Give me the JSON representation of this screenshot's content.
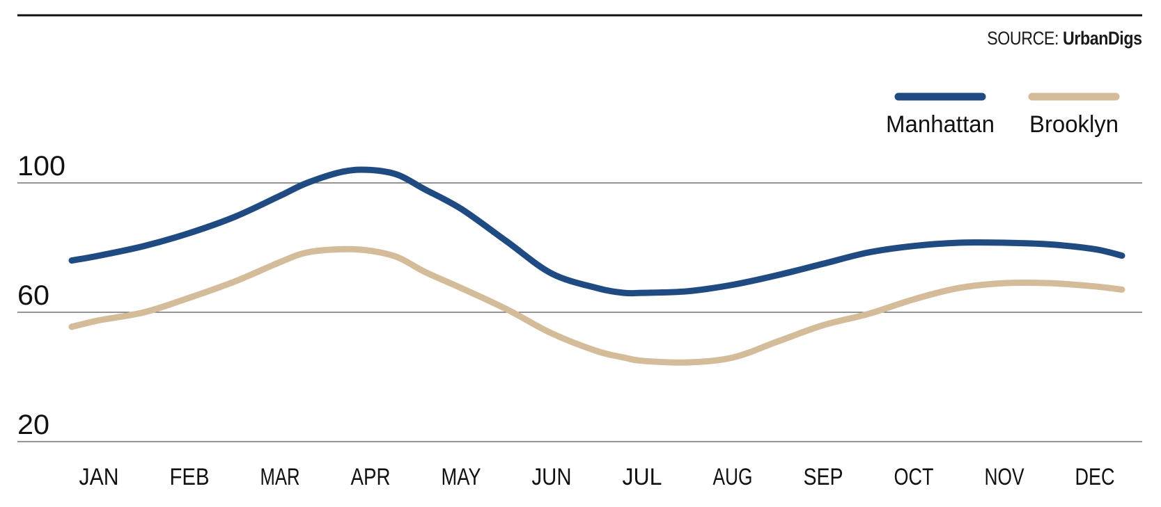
{
  "source": {
    "prefix": "SOURCE:",
    "name": "UrbanDigs"
  },
  "chart_data": {
    "type": "line",
    "title": "",
    "xlabel": "",
    "ylabel": "",
    "ylim": [
      20,
      100
    ],
    "yticks": [
      "100",
      "60",
      "20"
    ],
    "categories": [
      "JAN",
      "FEB",
      "MAR",
      "APR",
      "MAY",
      "JUN",
      "JUL",
      "AUG",
      "SEP",
      "OCT",
      "NOV",
      "DEC"
    ],
    "legend_position": "top-right",
    "grid": true,
    "series": [
      {
        "name": "Manhattan",
        "color": "#1f4a82",
        "x": [
          0.7,
          1.0,
          1.5,
          2.0,
          2.5,
          3.0,
          3.3,
          3.7,
          4.0,
          4.3,
          4.6,
          5.0,
          5.5,
          6.0,
          6.5,
          6.8,
          7.0,
          7.5,
          8.0,
          8.5,
          9.0,
          9.5,
          10.0,
          10.5,
          11.0,
          11.5,
          12.0,
          12.3
        ],
        "values": [
          76,
          77.5,
          80.5,
          84.5,
          89.5,
          96,
          100,
          103.5,
          104,
          102.5,
          98,
          92,
          82,
          72,
          67.5,
          66,
          66,
          66.5,
          68.5,
          71.5,
          75,
          78.5,
          80.5,
          81.5,
          81.5,
          81,
          79.5,
          77.5
        ]
      },
      {
        "name": "Brooklyn",
        "color": "#d4bc9a",
        "x": [
          0.7,
          1.0,
          1.5,
          2.0,
          2.5,
          3.0,
          3.3,
          3.7,
          4.0,
          4.3,
          4.6,
          5.0,
          5.5,
          6.0,
          6.5,
          6.8,
          7.0,
          7.5,
          8.0,
          8.5,
          9.0,
          9.5,
          10.0,
          10.5,
          11.0,
          11.5,
          12.0,
          12.3
        ],
        "values": [
          55.5,
          57.5,
          60,
          64.5,
          69.5,
          75.5,
          78.5,
          79.5,
          79,
          77,
          72.5,
          67.5,
          61,
          53.5,
          48,
          46,
          45,
          44.5,
          46,
          51,
          56,
          59.5,
          64,
          67.5,
          69,
          69,
          68,
          67
        ]
      }
    ]
  }
}
